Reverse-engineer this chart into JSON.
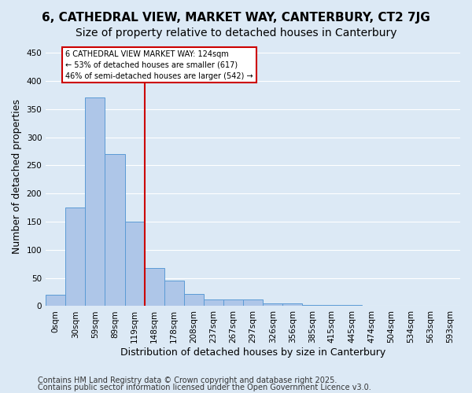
{
  "title_line1": "6, CATHEDRAL VIEW, MARKET WAY, CANTERBURY, CT2 7JG",
  "title_line2": "Size of property relative to detached houses in Canterbury",
  "xlabel": "Distribution of detached houses by size in Canterbury",
  "ylabel": "Number of detached properties",
  "bin_labels": [
    "0sqm",
    "30sqm",
    "59sqm",
    "89sqm",
    "119sqm",
    "148sqm",
    "178sqm",
    "208sqm",
    "237sqm",
    "267sqm",
    "297sqm",
    "326sqm",
    "356sqm",
    "385sqm",
    "415sqm",
    "445sqm",
    "474sqm",
    "504sqm",
    "534sqm",
    "563sqm",
    "593sqm"
  ],
  "bar_heights": [
    20,
    175,
    370,
    270,
    150,
    68,
    45,
    22,
    12,
    12,
    12,
    5,
    5,
    2,
    2,
    2,
    0,
    0,
    0,
    0,
    0
  ],
  "bar_color": "#aec6e8",
  "bar_edge_color": "#5b9bd5",
  "property_size": 124,
  "vline_color": "#cc0000",
  "annotation_line1": "6 CATHEDRAL VIEW MARKET WAY: 124sqm",
  "annotation_line2": "← 53% of detached houses are smaller (617)",
  "annotation_line3": "46% of semi-detached houses are larger (542) →",
  "annotation_box_color": "#ffffff",
  "annotation_box_edge": "#cc0000",
  "ylim": [
    0,
    460
  ],
  "yticks": [
    0,
    50,
    100,
    150,
    200,
    250,
    300,
    350,
    400,
    450
  ],
  "background_color": "#dce9f5",
  "footer_line1": "Contains HM Land Registry data © Crown copyright and database right 2025.",
  "footer_line2": "Contains public sector information licensed under the Open Government Licence v3.0.",
  "grid_color": "#ffffff",
  "title_fontsize": 11,
  "subtitle_fontsize": 10,
  "axis_label_fontsize": 9,
  "tick_fontsize": 7.5,
  "footer_fontsize": 7
}
